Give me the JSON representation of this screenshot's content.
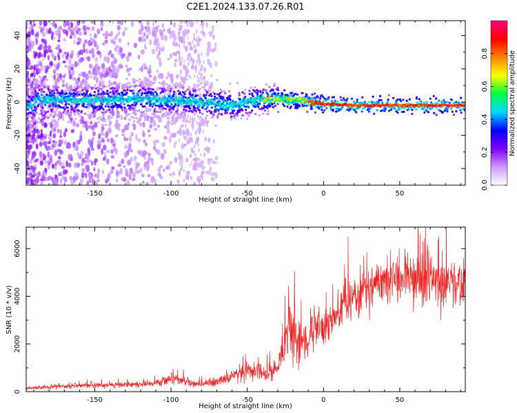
{
  "title": "C2E1.2024.133.07.26.R01",
  "chart_data": [
    {
      "type": "heatmap",
      "xlabel": "Height of straight line (km)",
      "ylabel": "Frequency (Hz)",
      "xlim": [
        -195,
        93
      ],
      "ylim": [
        -50,
        49
      ],
      "xticks": [
        -150,
        -100,
        -50,
        0,
        50
      ],
      "yticks": [
        -40,
        -20,
        0,
        20,
        40
      ],
      "colorbar": {
        "label": "Normalized spectral amplitude",
        "range": [
          0,
          1
        ],
        "ticks": [
          "0.0",
          "0.2",
          "0.4",
          "0.6",
          "0.8"
        ],
        "colors": [
          "#ffffff",
          "#cc99ff",
          "#7f00ff",
          "#0000ff",
          "#00d9ff",
          "#00ff40",
          "#ffff00",
          "#ff8000",
          "#ff0000",
          "#ff0080"
        ]
      },
      "grid": false,
      "ridge": [
        {
          "x": -190,
          "y": 1.5
        },
        {
          "x": -150,
          "y": 1
        },
        {
          "x": -120,
          "y": 2
        },
        {
          "x": -80,
          "y": 0
        },
        {
          "x": -60,
          "y": -2
        },
        {
          "x": -45,
          "y": 1
        },
        {
          "x": -30,
          "y": 2
        },
        {
          "x": -15,
          "y": 1
        },
        {
          "x": 0,
          "y": -1
        },
        {
          "x": 20,
          "y": -2
        },
        {
          "x": 50,
          "y": -2
        },
        {
          "x": 93,
          "y": -2
        }
      ]
    },
    {
      "type": "line",
      "xlabel": "Height of straight line (km)",
      "ylabel": "SNR (10 * v/v)",
      "xlim": [
        -195,
        93
      ],
      "ylim": [
        0,
        6900
      ],
      "xticks": [
        -150,
        -100,
        -50,
        0,
        50
      ],
      "yticks": [
        0,
        2000,
        4000,
        6000
      ],
      "series": [
        {
          "color": "#ee2222",
          "x": [
            -195,
            -180,
            -160,
            -150,
            -130,
            -120,
            -105,
            -100,
            -95,
            -85,
            -75,
            -65,
            -55,
            -45,
            -38,
            -30,
            -25,
            -22,
            -20,
            -15,
            -10,
            -5,
            0,
            10,
            20,
            30,
            40,
            50,
            60,
            70,
            80,
            93
          ],
          "y": [
            150,
            200,
            250,
            280,
            280,
            300,
            400,
            550,
            500,
            300,
            350,
            500,
            800,
            900,
            650,
            1000,
            2000,
            3000,
            2400,
            2000,
            2200,
            2800,
            2700,
            3300,
            4000,
            4400,
            4600,
            4700,
            4700,
            4600,
            4500,
            4300
          ],
          "noise": [
            60,
            80,
            90,
            100,
            100,
            110,
            150,
            250,
            200,
            120,
            150,
            200,
            300,
            350,
            250,
            400,
            900,
            1200,
            1000,
            700,
            600,
            700,
            650,
            700,
            800,
            850,
            850,
            850,
            850,
            850,
            850,
            850
          ]
        }
      ]
    }
  ]
}
